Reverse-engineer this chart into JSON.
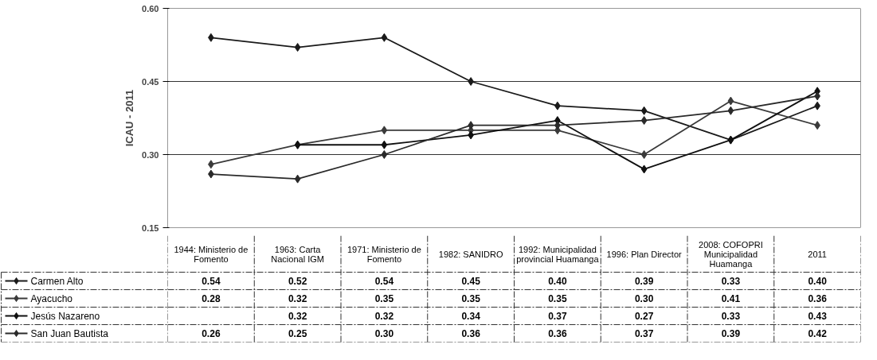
{
  "chart_data": {
    "type": "line",
    "ylabel": "ICAU - 2011",
    "categories": [
      "1944: Ministerio de Fomento",
      "1963: Carta Nacional IGM",
      "1971: Ministerio de Fomento",
      "1982: SANIDRO",
      "1992: Municipalidad provincial Huamanga",
      "1996: Plan Director",
      "2008: COFOPRI Municipalidad Huamanga",
      "2011"
    ],
    "series": [
      {
        "name": "Carmen Alto",
        "color": "#1a1a1a",
        "values": [
          0.54,
          0.52,
          0.54,
          0.45,
          0.4,
          0.39,
          0.33,
          0.4
        ],
        "value_labels": [
          "0.54",
          "0.52",
          "0.54",
          "0.45",
          "0.40",
          "0.39",
          "0.33",
          "0.40"
        ]
      },
      {
        "name": "Ayacucho",
        "color": "#3a3a3a",
        "values": [
          0.28,
          0.32,
          0.35,
          0.35,
          0.35,
          0.3,
          0.41,
          0.36
        ],
        "value_labels": [
          "0.28",
          "0.32",
          "0.35",
          "0.35",
          "0.35",
          "0.30",
          "0.41",
          "0.36"
        ]
      },
      {
        "name": "Jesús Nazareno",
        "color": "#101010",
        "values": [
          null,
          0.32,
          0.32,
          0.34,
          0.37,
          0.27,
          0.33,
          0.43
        ],
        "value_labels": [
          null,
          "0.32",
          "0.32",
          "0.34",
          "0.37",
          "0.27",
          "0.33",
          "0.43"
        ]
      },
      {
        "name": "San Juan Bautista",
        "color": "#2a2a2a",
        "values": [
          0.26,
          0.25,
          0.3,
          0.36,
          0.36,
          0.37,
          0.39,
          0.42
        ],
        "value_labels": [
          "0.26",
          "0.25",
          "0.30",
          "0.36",
          "0.36",
          "0.37",
          "0.39",
          "0.42"
        ]
      }
    ],
    "ylim": [
      0.15,
      0.6
    ],
    "yticks": [
      0.15,
      {
        "value": 0.3,
        "label": "0.30"
      },
      0.45,
      {
        "value": 0.6,
        "label": "0.60"
      }
    ],
    "grid": "y",
    "marker": "diamond",
    "line_style": "solid",
    "legend": "bottom"
  }
}
